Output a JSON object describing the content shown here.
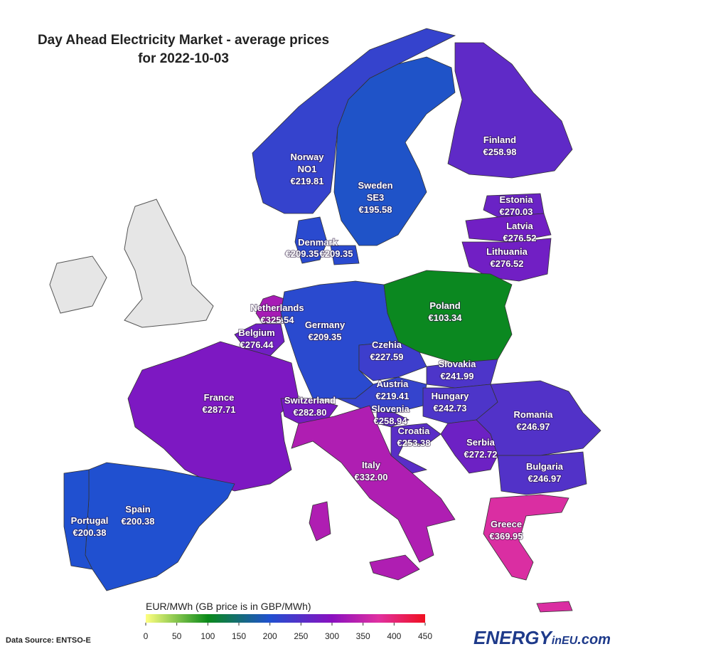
{
  "title": "Day Ahead Electricity Market - average prices",
  "subtitle": "for 2022-10-03",
  "regions": [
    {
      "name": "Norway",
      "zone": "NO1",
      "prices": [
        {
          "value": 219.81,
          "label": "€219.81"
        }
      ]
    },
    {
      "name": "Sweden",
      "zone": "SE3",
      "prices": [
        {
          "value": 195.58,
          "label": "€195.58"
        }
      ]
    },
    {
      "name": "Finland",
      "prices": [
        {
          "value": 258.98,
          "label": "€258.98"
        }
      ]
    },
    {
      "name": "Estonia",
      "prices": [
        {
          "value": 270.03,
          "label": "€270.03"
        }
      ]
    },
    {
      "name": "Latvia",
      "prices": [
        {
          "value": 276.52,
          "label": "€276.52"
        }
      ]
    },
    {
      "name": "Lithuania",
      "prices": [
        {
          "value": 276.52,
          "label": "€276.52"
        }
      ]
    },
    {
      "name": "Denmark",
      "prices": [
        {
          "value": 209.35,
          "label": "€209.35"
        },
        {
          "value": 209.35,
          "label": "€209.35"
        }
      ]
    },
    {
      "name": "Netherlands",
      "prices": [
        {
          "value": 325.54,
          "label": "€325.54"
        }
      ]
    },
    {
      "name": "Belgium",
      "prices": [
        {
          "value": 276.44,
          "label": "€276.44"
        }
      ]
    },
    {
      "name": "Germany",
      "prices": [
        {
          "value": 209.35,
          "label": "€209.35"
        }
      ]
    },
    {
      "name": "Poland",
      "prices": [
        {
          "value": 103.34,
          "label": "€103.34"
        }
      ]
    },
    {
      "name": "Czehia",
      "prices": [
        {
          "value": 227.59,
          "label": "€227.59"
        }
      ]
    },
    {
      "name": "Slovakia",
      "prices": [
        {
          "value": 241.99,
          "label": "€241.99"
        }
      ]
    },
    {
      "name": "France",
      "prices": [
        {
          "value": 287.71,
          "label": "€287.71"
        }
      ]
    },
    {
      "name": "Switzerland",
      "prices": [
        {
          "value": 282.8,
          "label": "€282.80"
        }
      ]
    },
    {
      "name": "Austria",
      "prices": [
        {
          "value": 219.41,
          "label": "€219.41"
        }
      ]
    },
    {
      "name": "Hungary",
      "prices": [
        {
          "value": 242.73,
          "label": "€242.73"
        }
      ]
    },
    {
      "name": "Romania",
      "prices": [
        {
          "value": 246.97,
          "label": "€246.97"
        }
      ]
    },
    {
      "name": "Slovenia",
      "prices": [
        {
          "value": 258.94,
          "label": "€258.94"
        }
      ]
    },
    {
      "name": "Croatia",
      "prices": [
        {
          "value": 253.38,
          "label": "€253.38"
        }
      ]
    },
    {
      "name": "Serbia",
      "prices": [
        {
          "value": 272.72,
          "label": "€272.72"
        }
      ]
    },
    {
      "name": "Bulgaria",
      "prices": [
        {
          "value": 246.97,
          "label": "€246.97"
        }
      ]
    },
    {
      "name": "Italy",
      "prices": [
        {
          "value": 332.0,
          "label": "€332.00"
        }
      ]
    },
    {
      "name": "Spain",
      "prices": [
        {
          "value": 200.38,
          "label": "€200.38"
        }
      ]
    },
    {
      "name": "Portugal",
      "prices": [
        {
          "value": 200.38,
          "label": "€200.38"
        }
      ]
    },
    {
      "name": "Greece",
      "prices": [
        {
          "value": 369.95,
          "label": "€369.95"
        }
      ]
    }
  ],
  "legend": {
    "title": "EUR/MWh (GB price is in GBP/MWh)",
    "range": [
      0,
      450
    ],
    "ticks": [
      0,
      50,
      100,
      150,
      200,
      250,
      300,
      350,
      400,
      450
    ],
    "colorscale": [
      [
        0,
        "#ffff80"
      ],
      [
        100,
        "#0a8a1a"
      ],
      [
        200,
        "#2050d0"
      ],
      [
        300,
        "#8a10c0"
      ],
      [
        375,
        "#e030a0"
      ],
      [
        450,
        "#f01020"
      ]
    ]
  },
  "source": "Data Source: ENTSO-E",
  "brand": [
    "ENERGY",
    "inEU",
    ".com"
  ]
}
